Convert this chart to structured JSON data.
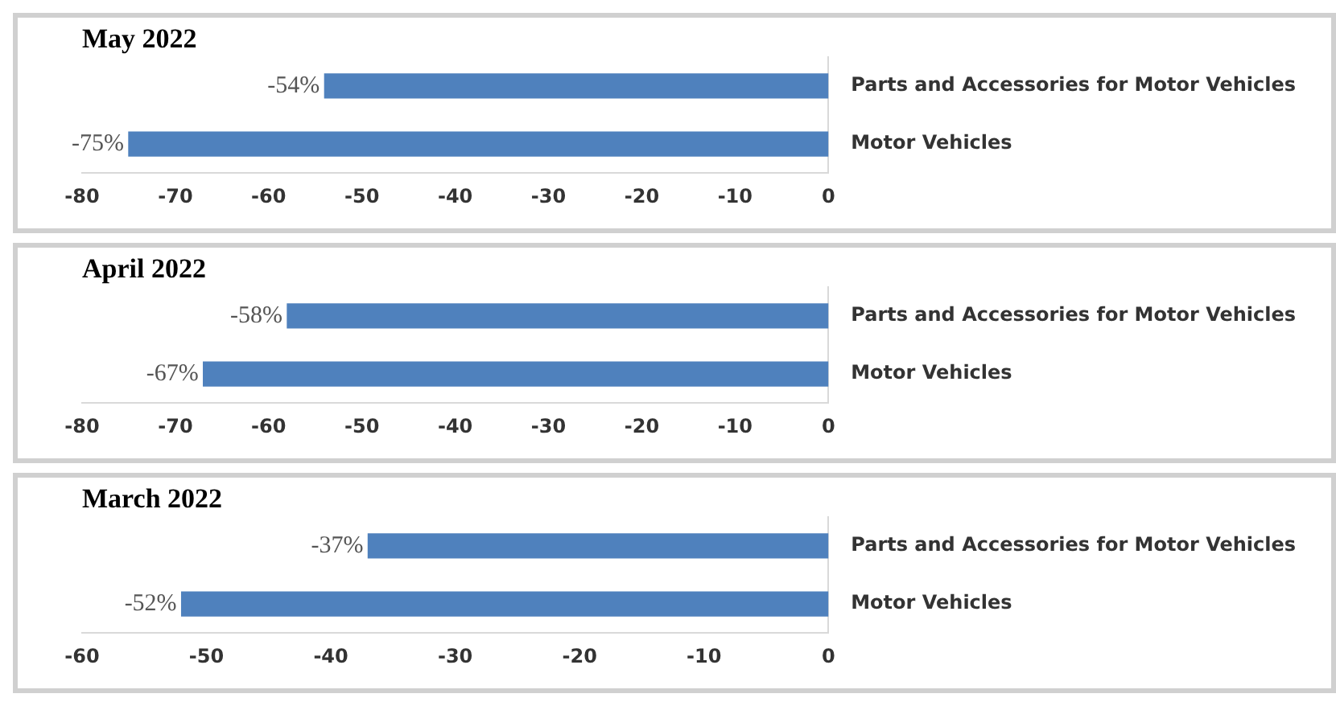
{
  "chart_data": [
    {
      "type": "bar",
      "orientation": "horizontal",
      "title": "May 2022",
      "categories": [
        "Parts and Accessories for Motor Vehicles",
        "Motor Vehicles"
      ],
      "values": [
        -54,
        -75
      ],
      "value_labels": [
        "-54%",
        "-75%"
      ],
      "color": "#4f81bd",
      "xlim": [
        -80,
        0
      ],
      "xticks": [
        -80,
        -70,
        -60,
        -50,
        -40,
        -30,
        -20,
        -10,
        0
      ],
      "grid": false,
      "legend": false
    },
    {
      "type": "bar",
      "orientation": "horizontal",
      "title": "April 2022",
      "categories": [
        "Parts and Accessories for Motor Vehicles",
        "Motor Vehicles"
      ],
      "values": [
        -58,
        -67
      ],
      "value_labels": [
        "-58%",
        "-67%"
      ],
      "color": "#4f81bd",
      "xlim": [
        -80,
        0
      ],
      "xticks": [
        -80,
        -70,
        -60,
        -50,
        -40,
        -30,
        -20,
        -10,
        0
      ],
      "grid": false,
      "legend": false
    },
    {
      "type": "bar",
      "orientation": "horizontal",
      "title": "March 2022",
      "categories": [
        "Parts and Accessories for Motor Vehicles",
        "Motor Vehicles"
      ],
      "values": [
        -37,
        -52
      ],
      "value_labels": [
        "-37%",
        "-52%"
      ],
      "color": "#4f81bd",
      "xlim": [
        -60,
        0
      ],
      "xticks": [
        -60,
        -50,
        -40,
        -30,
        -20,
        -10,
        0
      ],
      "grid": false,
      "legend": false
    }
  ]
}
